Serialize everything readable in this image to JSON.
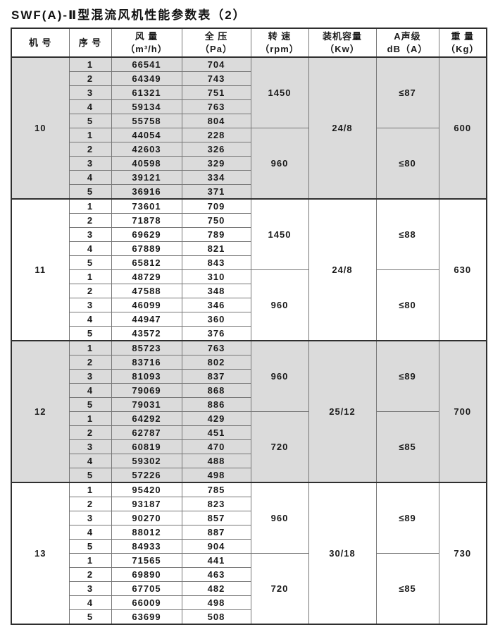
{
  "title": "SWF(A)-Ⅱ型混流风机性能参数表（2）",
  "table": {
    "headers": [
      {
        "line1": "机 号",
        "line2": ""
      },
      {
        "line1": "序 号",
        "line2": ""
      },
      {
        "line1": "风 量",
        "line2": "（m³/h）"
      },
      {
        "line1": "全 压",
        "line2": "（Pa）"
      },
      {
        "line1": "转 速",
        "line2": "（rpm）"
      },
      {
        "line1": "装机容量",
        "line2": "（Kw）"
      },
      {
        "line1": "A声级",
        "line2": "dB（A）"
      },
      {
        "line1": "重 量",
        "line2": "（Kg）"
      }
    ],
    "groups": [
      {
        "machine": "10",
        "capacity": "24/8",
        "weight": "600",
        "shaded": true,
        "speed_blocks": [
          {
            "speed": "1450",
            "noise": "≤87",
            "rows": [
              [
                1,
                66541,
                704
              ],
              [
                2,
                64349,
                743
              ],
              [
                3,
                61321,
                751
              ],
              [
                4,
                59134,
                763
              ],
              [
                5,
                55758,
                804
              ]
            ]
          },
          {
            "speed": "960",
            "noise": "≤80",
            "rows": [
              [
                1,
                44054,
                228
              ],
              [
                2,
                42603,
                326
              ],
              [
                3,
                40598,
                329
              ],
              [
                4,
                39121,
                334
              ],
              [
                5,
                36916,
                371
              ]
            ]
          }
        ]
      },
      {
        "machine": "11",
        "capacity": "24/8",
        "weight": "630",
        "shaded": false,
        "speed_blocks": [
          {
            "speed": "1450",
            "noise": "≤88",
            "rows": [
              [
                1,
                73601,
                709
              ],
              [
                2,
                71878,
                750
              ],
              [
                3,
                69629,
                789
              ],
              [
                4,
                67889,
                821
              ],
              [
                5,
                65812,
                843
              ]
            ]
          },
          {
            "speed": "960",
            "noise": "≤80",
            "rows": [
              [
                1,
                48729,
                310
              ],
              [
                2,
                47588,
                348
              ],
              [
                3,
                46099,
                346
              ],
              [
                4,
                44947,
                360
              ],
              [
                5,
                43572,
                376
              ]
            ]
          }
        ]
      },
      {
        "machine": "12",
        "capacity": "25/12",
        "weight": "700",
        "shaded": true,
        "speed_blocks": [
          {
            "speed": "960",
            "noise": "≤89",
            "rows": [
              [
                1,
                85723,
                763
              ],
              [
                2,
                83716,
                802
              ],
              [
                3,
                81093,
                837
              ],
              [
                4,
                79069,
                868
              ],
              [
                5,
                79031,
                886
              ]
            ]
          },
          {
            "speed": "720",
            "noise": "≤85",
            "rows": [
              [
                1,
                64292,
                429
              ],
              [
                2,
                62787,
                451
              ],
              [
                3,
                60819,
                470
              ],
              [
                4,
                59302,
                488
              ],
              [
                5,
                57226,
                498
              ]
            ]
          }
        ]
      },
      {
        "machine": "13",
        "capacity": "30/18",
        "weight": "730",
        "shaded": false,
        "speed_blocks": [
          {
            "speed": "960",
            "noise": "≤89",
            "rows": [
              [
                1,
                95420,
                785
              ],
              [
                2,
                93187,
                823
              ],
              [
                3,
                90270,
                857
              ],
              [
                4,
                88012,
                887
              ],
              [
                5,
                84933,
                904
              ]
            ]
          },
          {
            "speed": "720",
            "noise": "≤85",
            "rows": [
              [
                1,
                71565,
                441
              ],
              [
                2,
                69890,
                463
              ],
              [
                3,
                67705,
                482
              ],
              [
                4,
                66009,
                498
              ],
              [
                5,
                63699,
                508
              ]
            ]
          }
        ]
      }
    ]
  },
  "colors": {
    "shaded_row_bg": "#dbdbdb",
    "border_thin": "#767676",
    "border_thick": "#2f2f2f",
    "text": "#1a1a1a"
  }
}
